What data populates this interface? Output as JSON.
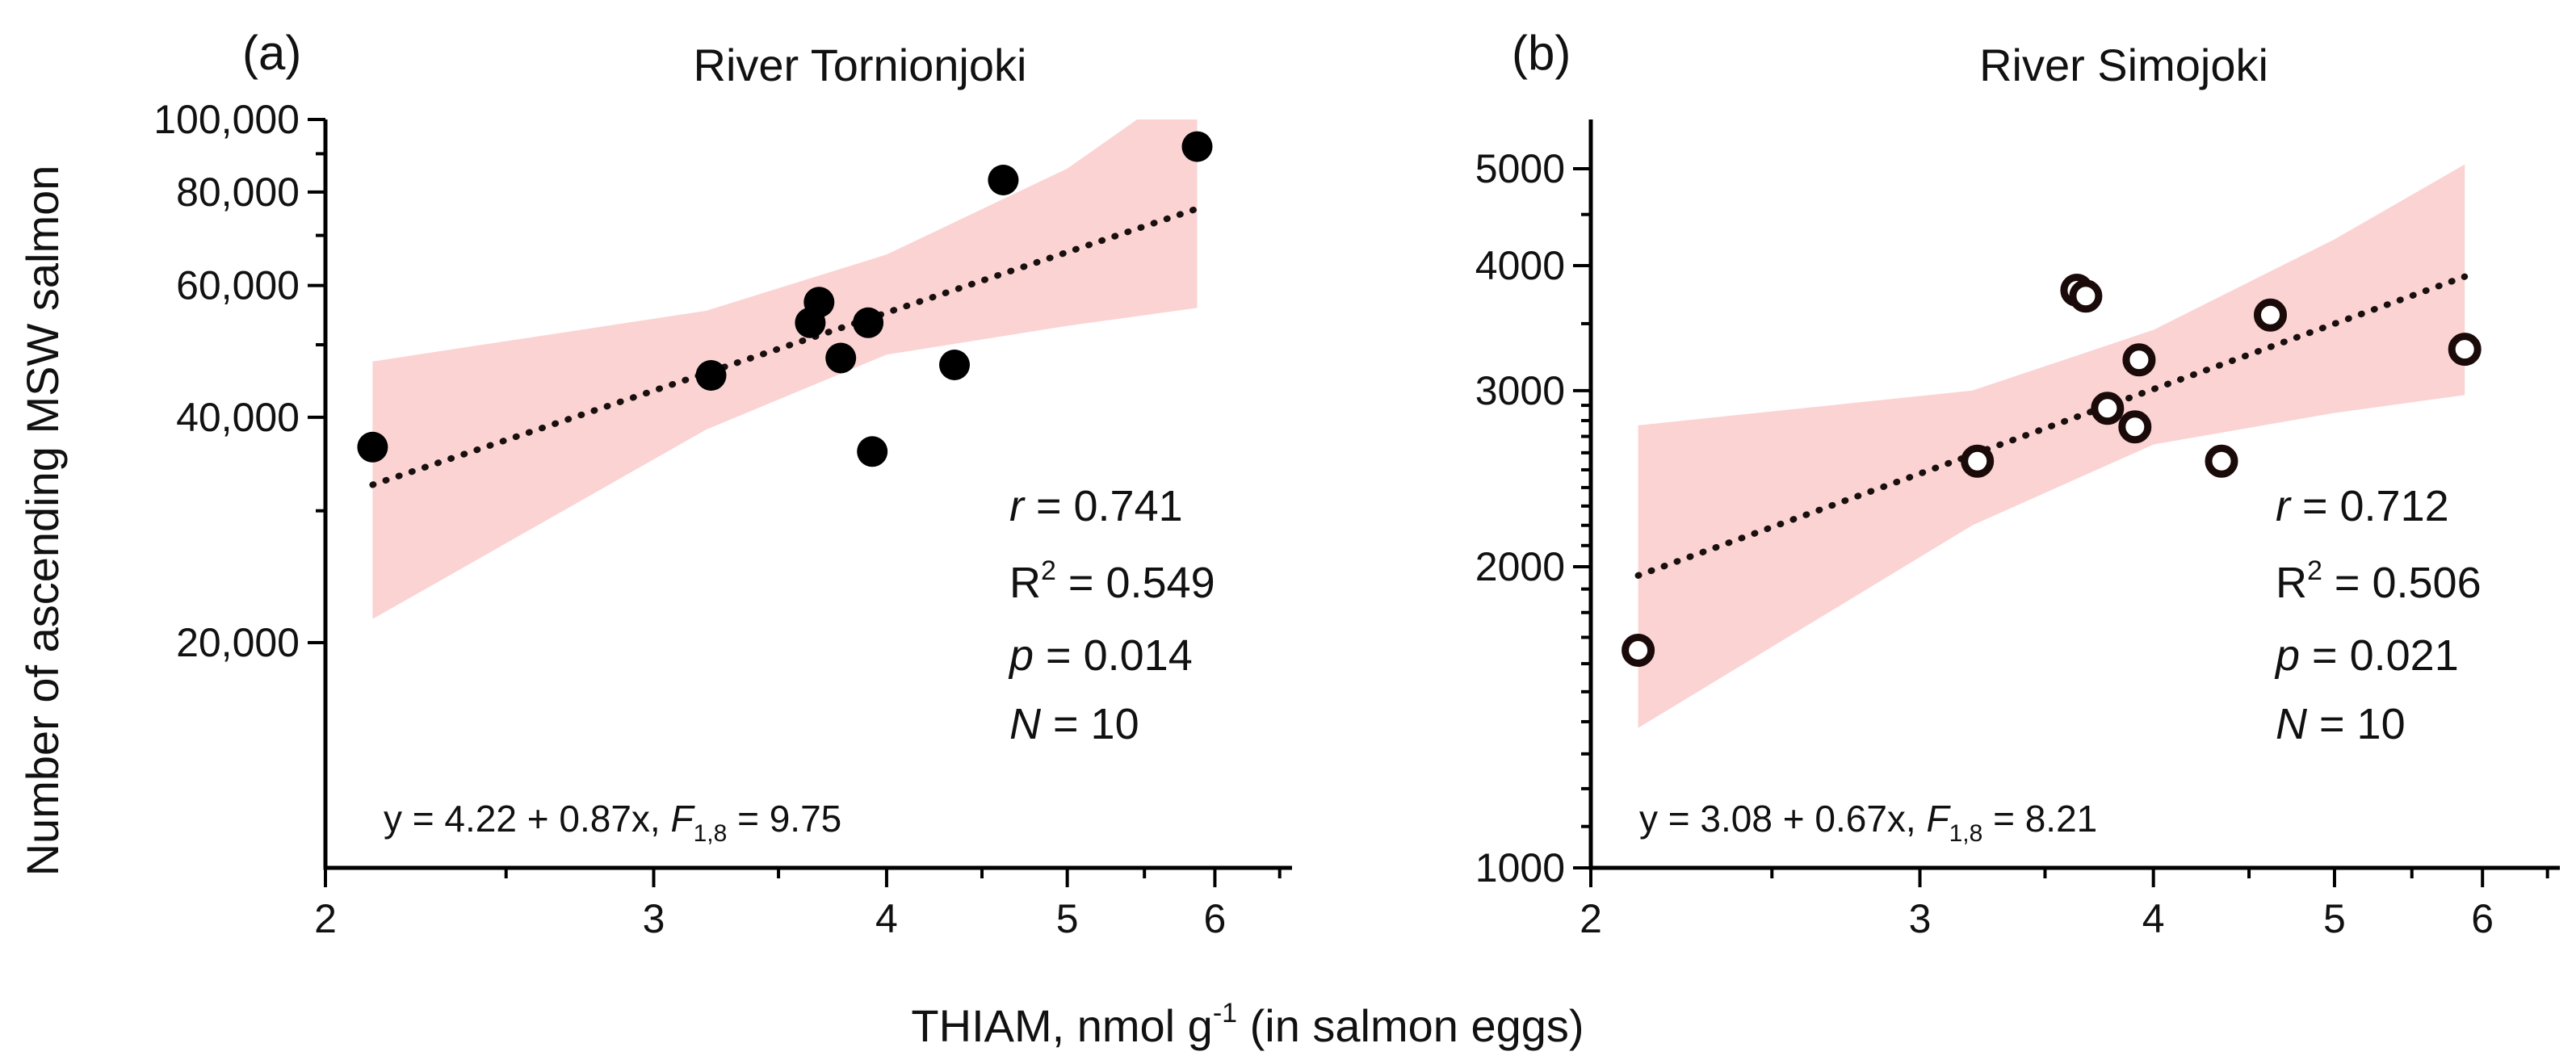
{
  "chart_data": {
    "type": "scatter",
    "xlabel": "THIAM, nmol g",
    "xlabel_sup": "-1",
    "xlabel_tail": " (in salmon eggs)",
    "ylabel": "Number of ascending MSW salmon",
    "panels": [
      {
        "panel_label": "(a)",
        "title": "River Tornionjoki",
        "x_scale": "log",
        "y_scale": "log",
        "xlim": [
          2,
          6.6
        ],
        "ylim": [
          10000,
          100000
        ],
        "x_ticks": [
          2,
          3,
          4,
          5,
          6
        ],
        "x_tick_labels": [
          "2",
          "3",
          "4",
          "5",
          "6"
        ],
        "y_ticks": [
          20000,
          40000,
          60000,
          80000,
          100000
        ],
        "y_tick_labels": [
          "20,000",
          "40,000",
          "60,000",
          "80,000",
          "100,000"
        ],
        "marker": "filled",
        "points": [
          {
            "x": 2.12,
            "y": 36500
          },
          {
            "x": 3.22,
            "y": 45500
          },
          {
            "x": 3.64,
            "y": 53500
          },
          {
            "x": 3.68,
            "y": 57000
          },
          {
            "x": 3.78,
            "y": 48000
          },
          {
            "x": 3.91,
            "y": 53500
          },
          {
            "x": 3.93,
            "y": 36000
          },
          {
            "x": 4.35,
            "y": 47000
          },
          {
            "x": 4.62,
            "y": 83000
          },
          {
            "x": 5.87,
            "y": 92000
          }
        ],
        "fit": {
          "x0": 2.12,
          "y0": 32500,
          "x1": 5.87,
          "y1": 76000
        },
        "band_upper": [
          {
            "x": 2.12,
            "y": 47500
          },
          {
            "x": 3.2,
            "y": 55500
          },
          {
            "x": 4.0,
            "y": 66000
          },
          {
            "x": 5.0,
            "y": 86000
          },
          {
            "x": 5.45,
            "y": 100000
          },
          {
            "x": 5.87,
            "y": 100000
          }
        ],
        "band_lower": [
          {
            "x": 2.12,
            "y": 21500
          },
          {
            "x": 3.2,
            "y": 38500
          },
          {
            "x": 4.0,
            "y": 48500
          },
          {
            "x": 5.0,
            "y": 53000
          },
          {
            "x": 5.87,
            "y": 56000
          }
        ],
        "stats": {
          "r_sym": "r",
          "r_val": " = 0.741",
          "r2_sym": "R",
          "r2_sup": "2",
          "r2_val": " = 0.549",
          "p_sym": "p",
          "p_val": " = 0.014",
          "n_sym": "N",
          "n_val": " = 10"
        },
        "equation": {
          "text": "y = 4.22 + 0.87x, ",
          "f_sym": "F",
          "f_sub": "1,8",
          "f_val": " = 9.75"
        }
      },
      {
        "panel_label": "(b)",
        "title": "River Simojoki",
        "x_scale": "log",
        "y_scale": "log",
        "xlim": [
          2,
          6.6
        ],
        "ylim": [
          1000,
          5600
        ],
        "x_ticks": [
          2,
          3,
          4,
          5,
          6
        ],
        "x_tick_labels": [
          "2",
          "3",
          "4",
          "5",
          "6"
        ],
        "y_ticks": [
          1000,
          2000,
          3000,
          4000,
          5000
        ],
        "y_tick_labels": [
          "1000",
          "2000",
          "3000",
          "4000",
          "5000"
        ],
        "marker": "open",
        "points": [
          {
            "x": 2.12,
            "y": 1650
          },
          {
            "x": 3.22,
            "y": 2550
          },
          {
            "x": 3.64,
            "y": 3780
          },
          {
            "x": 3.68,
            "y": 3730
          },
          {
            "x": 3.78,
            "y": 2880
          },
          {
            "x": 3.91,
            "y": 2760
          },
          {
            "x": 3.93,
            "y": 3220
          },
          {
            "x": 4.35,
            "y": 2550
          },
          {
            "x": 4.62,
            "y": 3570
          },
          {
            "x": 5.87,
            "y": 3300
          }
        ],
        "fit": {
          "x0": 2.12,
          "y0": 1960,
          "x1": 5.87,
          "y1": 3900
        },
        "band_upper": [
          {
            "x": 2.12,
            "y": 2770
          },
          {
            "x": 3.2,
            "y": 3000
          },
          {
            "x": 4.0,
            "y": 3450
          },
          {
            "x": 5.0,
            "y": 4250
          },
          {
            "x": 5.87,
            "y": 5050
          }
        ],
        "band_lower": [
          {
            "x": 2.12,
            "y": 1380
          },
          {
            "x": 3.2,
            "y": 2200
          },
          {
            "x": 4.0,
            "y": 2650
          },
          {
            "x": 5.0,
            "y": 2850
          },
          {
            "x": 5.87,
            "y": 2970
          }
        ],
        "stats": {
          "r_sym": "r",
          "r_val": " = 0.712",
          "r2_sym": "R",
          "r2_sup": "2",
          "r2_val": " = 0.506",
          "p_sym": "p",
          "p_val": " = 0.021",
          "n_sym": "N",
          "n_val": " = 10"
        },
        "equation": {
          "text": "y = 3.08 + 0.67x, ",
          "f_sym": "F",
          "f_sub": "1,8",
          "f_val": " = 8.21"
        }
      }
    ]
  }
}
